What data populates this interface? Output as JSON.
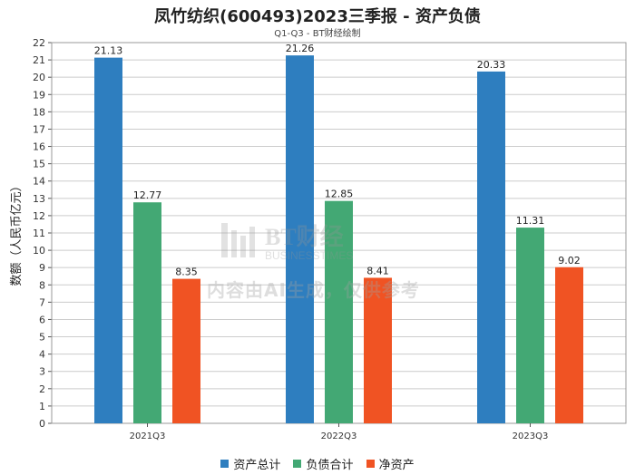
{
  "header": {
    "title": "凤竹纺织(600493)2023三季报 - 资产负债",
    "subtitle": "Q1-Q3 - BT财经绘制"
  },
  "watermark": {
    "brand": "BT财经",
    "brand_sub": "BUSINESSTIMES",
    "notice": "内容由AI生成，仅供参考"
  },
  "colors": {
    "assets": "#2E7EBF",
    "liabilities": "#43A874",
    "net": "#F05323",
    "grid": "#cccccc",
    "axis": "#555555"
  },
  "chart_data": {
    "type": "bar",
    "title": "凤竹纺织(600493)2023三季报 - 资产负债",
    "subtitle": "Q1-Q3 - BT财经绘制",
    "xlabel": "",
    "ylabel": "数额（人民币亿元）",
    "ylim": [
      0,
      22
    ],
    "ytick_step": 1,
    "grid": true,
    "legend_position": "bottom",
    "categories": [
      "2021Q3",
      "2022Q3",
      "2023Q3"
    ],
    "series": [
      {
        "name": "资产总计",
        "color": "#2E7EBF",
        "values": [
          21.13,
          21.26,
          20.33
        ]
      },
      {
        "name": "负债合计",
        "color": "#43A874",
        "values": [
          12.77,
          12.85,
          11.31
        ]
      },
      {
        "name": "净资产",
        "color": "#F05323",
        "values": [
          8.35,
          8.41,
          9.02
        ]
      }
    ]
  }
}
